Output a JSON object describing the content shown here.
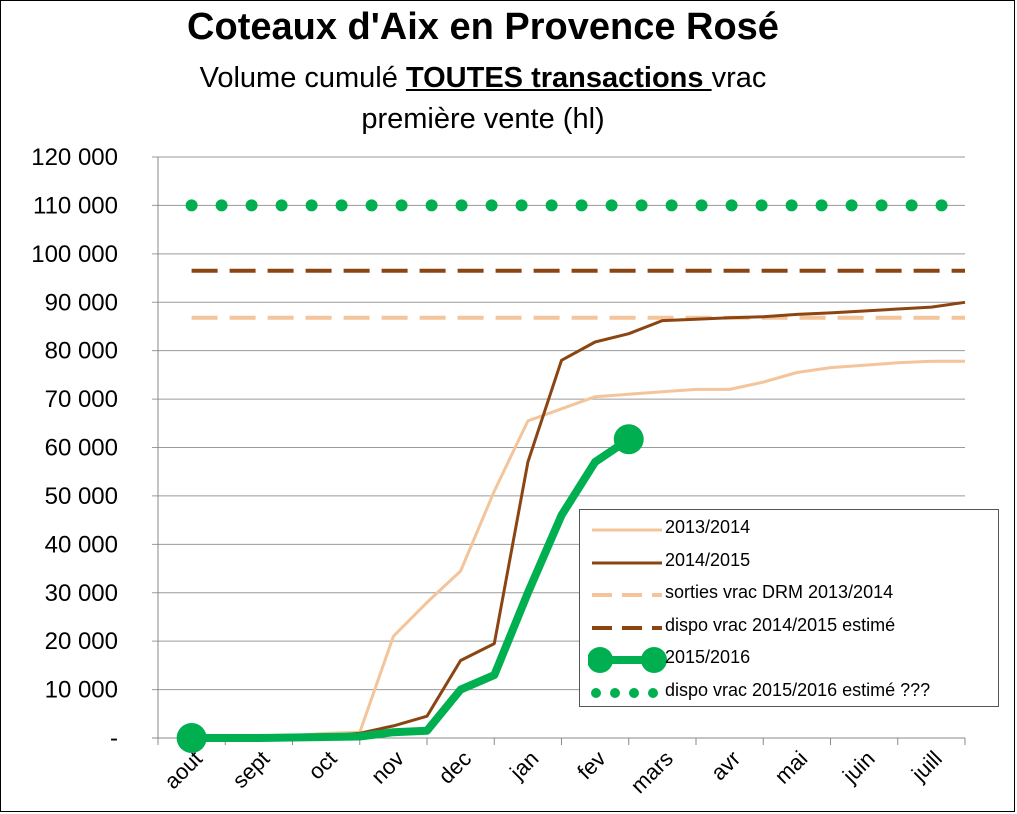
{
  "title": "Coteaux d'Aix en Provence Rosé",
  "subtitle": {
    "before": "Volume cumulé ",
    "emphasis": "TOUTES transactions ",
    "after": "vrac",
    "line2": "première vente (hl)"
  },
  "chart_data": {
    "type": "line",
    "title": "Coteaux d'Aix en Provence Rosé",
    "subtitle": "Volume cumulé TOUTES transactions vrac première vente (hl)",
    "categories": [
      "aout",
      "sept",
      "oct",
      "nov",
      "dec",
      "jan",
      "fev",
      "mars",
      "avr",
      "mai",
      "juin",
      "juill"
    ],
    "ylim": [
      0,
      120000
    ],
    "yticks": [
      {
        "value": 0,
        "label": "-"
      },
      {
        "value": 10000,
        "label": "10 000"
      },
      {
        "value": 20000,
        "label": "20 000"
      },
      {
        "value": 30000,
        "label": "30 000"
      },
      {
        "value": 40000,
        "label": "40 000"
      },
      {
        "value": 50000,
        "label": "50 000"
      },
      {
        "value": 60000,
        "label": "60 000"
      },
      {
        "value": 70000,
        "label": "70 000"
      },
      {
        "value": 80000,
        "label": "80 000"
      },
      {
        "value": 90000,
        "label": "90 000"
      },
      {
        "value": 100000,
        "label": "100 000"
      },
      {
        "value": 110000,
        "label": "110 000"
      },
      {
        "value": 120000,
        "label": "120 000"
      }
    ],
    "grid": "horizontal",
    "legend_position": "bottom-right",
    "series": [
      {
        "name": "2013/2014",
        "style": "line",
        "color": "#f4c49a",
        "x": [
          0,
          0.5,
          1,
          1.5,
          2,
          2.5,
          3,
          3.5,
          4,
          4.5,
          5,
          5.5,
          6,
          6.5,
          7,
          7.5,
          8,
          8.5,
          9,
          9.5,
          10,
          10.5,
          11,
          11.5
        ],
        "y": [
          0,
          100,
          200,
          500,
          1000,
          1200,
          21000,
          28000,
          34500,
          51000,
          65500,
          68000,
          70500,
          71000,
          71500,
          72000,
          72000,
          73500,
          75500,
          76500,
          77000,
          77500,
          77800,
          77800
        ]
      },
      {
        "name": "2014/2015",
        "style": "line",
        "color": "#8b4513",
        "x": [
          0,
          0.5,
          1,
          1.5,
          2,
          2.5,
          3,
          3.5,
          4,
          4.5,
          5,
          5.5,
          6,
          6.5,
          7,
          7.5,
          8,
          8.5,
          9,
          9.5,
          10,
          10.5,
          11,
          11.5
        ],
        "y": [
          0,
          100,
          200,
          300,
          400,
          1000,
          2500,
          4500,
          16000,
          19500,
          57000,
          78000,
          81800,
          83500,
          86200,
          86500,
          86800,
          87000,
          87500,
          87800,
          88200,
          88600,
          89000,
          90000
        ]
      },
      {
        "name": "sorties vrac DRM 2013/2014",
        "style": "dashed",
        "color": "#f4c49a",
        "x": [
          0,
          11.5
        ],
        "y": [
          86800,
          86800
        ]
      },
      {
        "name": "dispo vrac 2014/2015 estimé",
        "style": "dashed",
        "color": "#8b4513",
        "x": [
          0,
          11.5
        ],
        "y": [
          96500,
          96500
        ]
      },
      {
        "name": "2015/2016",
        "style": "thick-line-markers",
        "color": "#00b050",
        "x": [
          0,
          0.5,
          1,
          1.5,
          2,
          2.5,
          3,
          3.5,
          4,
          4.5,
          5,
          5.5,
          6,
          6.5
        ],
        "y": [
          0,
          0,
          0,
          100,
          200,
          300,
          1200,
          1500,
          10000,
          13000,
          30000,
          46000,
          57000,
          61700
        ],
        "markers": [
          0,
          13
        ]
      },
      {
        "name": "dispo vrac 2015/2016 estimé ???",
        "style": "dotted",
        "color": "#00b050",
        "x": [
          0,
          11.5
        ],
        "y": [
          110000,
          110000
        ]
      }
    ]
  }
}
